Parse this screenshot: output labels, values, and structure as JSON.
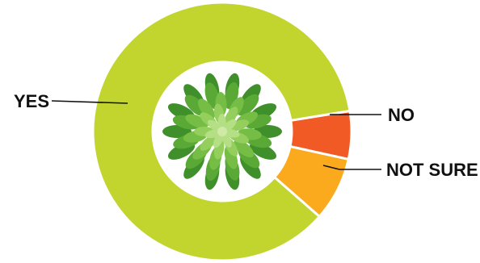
{
  "chart_data": {
    "type": "pie",
    "donut": true,
    "title": "",
    "categories": [
      "NO",
      "NOT SURE",
      "YES"
    ],
    "values": [
      6,
      8,
      86
    ],
    "colors": [
      "#f15a24",
      "#faaa1c",
      "#c2d52f"
    ],
    "center_image": "leafy-plant-top-view"
  }
}
